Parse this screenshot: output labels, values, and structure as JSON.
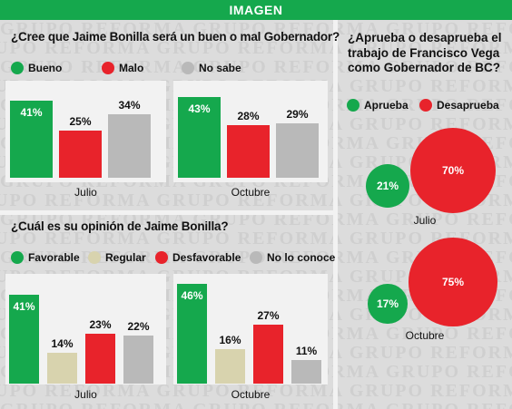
{
  "header": {
    "title": "IMAGEN"
  },
  "watermark": "GRUPO REFORMA GRUPO REFORMA GRUPO REFORMA GRUPO REFORMA",
  "colors": {
    "green": "#15a84d",
    "red": "#e8232b",
    "gray": "#b9b9b9",
    "beige": "#d8d3ae"
  },
  "chart_data": [
    {
      "type": "bar",
      "title": "¿Cree que Jaime Bonilla será un buen o mal Gobernador?",
      "legend": [
        "Bueno",
        "Malo",
        "No sabe"
      ],
      "groups": [
        {
          "label": "Julio",
          "values": [
            41,
            25,
            34
          ],
          "labels": [
            "41%",
            "25%",
            "34%"
          ]
        },
        {
          "label": "Octubre",
          "values": [
            43,
            28,
            29
          ],
          "labels": [
            "43%",
            "28%",
            "29%"
          ]
        }
      ]
    },
    {
      "type": "bar",
      "title": "¿Cuál es su opinión de Jaime Bonilla?",
      "legend": [
        "Favorable",
        "Regular",
        "Desfavorable",
        "No lo conoce"
      ],
      "groups": [
        {
          "label": "Julio",
          "values": [
            41,
            14,
            23,
            22
          ],
          "labels": [
            "41%",
            "14%",
            "23%",
            "22%"
          ]
        },
        {
          "label": "Octubre",
          "values": [
            46,
            16,
            27,
            11
          ],
          "labels": [
            "46%",
            "16%",
            "27%",
            "11%"
          ]
        }
      ]
    },
    {
      "type": "bubble",
      "title": "¿Aprueba o desaprueba el trabajo de Francisco Vega como Gobernador de BC?",
      "legend": [
        "Aprueba",
        "Desaprueba"
      ],
      "groups": [
        {
          "label": "Julio",
          "values": [
            21,
            70
          ],
          "labels": [
            "21%",
            "70%"
          ]
        },
        {
          "label": "Octubre",
          "values": [
            17,
            75
          ],
          "labels": [
            "17%",
            "75%"
          ]
        }
      ]
    }
  ]
}
